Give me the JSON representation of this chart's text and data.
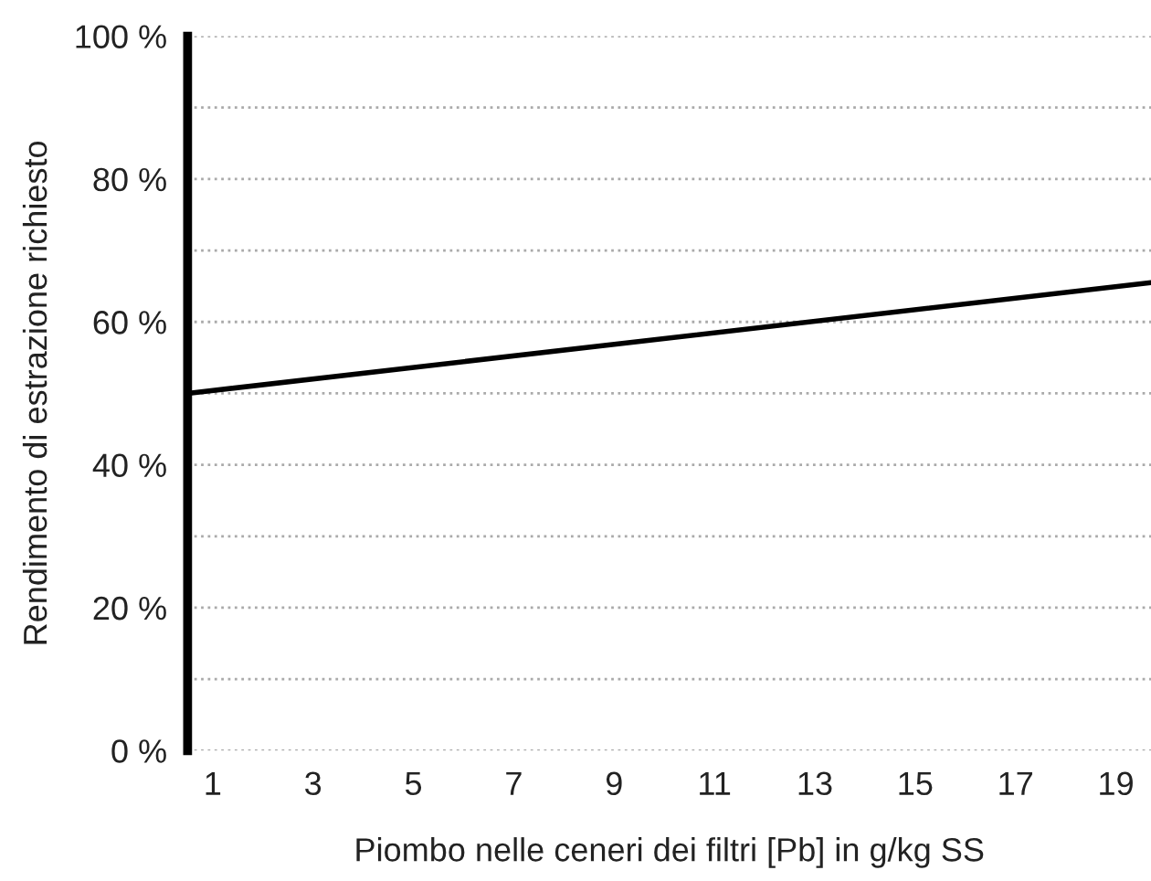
{
  "chart_data": {
    "type": "line",
    "xlabel": "Piombo nelle ceneri dei filtri [Pb] in g/kg SS",
    "ylabel": "Rendimento di estrazione richiesto",
    "x": [
      0.5,
      19.7
    ],
    "series": [
      {
        "color": "#000000",
        "values": [
          50,
          65.5
        ]
      }
    ],
    "xlim": [
      0.5,
      19.7
    ],
    "xticks": [
      1,
      3,
      5,
      7,
      9,
      11,
      13,
      15,
      17,
      19
    ],
    "ylim": [
      0,
      100
    ],
    "yticks": [
      {
        "value": 0,
        "label": "0 %"
      },
      {
        "value": 10,
        "label": null
      },
      {
        "value": 20,
        "label": "20 %"
      },
      {
        "value": 30,
        "label": null
      },
      {
        "value": 40,
        "label": "40 %"
      },
      {
        "value": 50,
        "label": null
      },
      {
        "value": 60,
        "label": "60 %"
      },
      {
        "value": 70,
        "label": null
      },
      {
        "value": 80,
        "label": "80 %"
      },
      {
        "value": 90,
        "label": null
      },
      {
        "value": 100,
        "label": "100 %"
      }
    ],
    "grid": "y",
    "line_style": "solid"
  }
}
